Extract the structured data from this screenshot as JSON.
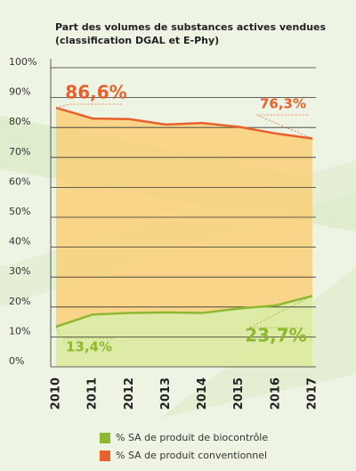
{
  "chart_data": {
    "type": "area-line",
    "title": [
      "Part des volumes de substances actives vendues",
      "(classification DGAL et E-Phy)"
    ],
    "categories": [
      "2010",
      "2011",
      "2012",
      "2013",
      "2014",
      "2015",
      "2016",
      "2017"
    ],
    "series": [
      {
        "name": "% SA de produit conventionnel",
        "color": "#e8612c",
        "fill": "#f8d27e",
        "values": [
          86.6,
          83,
          82.8,
          81,
          81.5,
          80.2,
          78,
          76.3
        ],
        "value_labels": [
          "86,6%",
          null,
          null,
          null,
          null,
          null,
          null,
          "76,3%"
        ]
      },
      {
        "name": "% SA de produit de biocontrôle",
        "color": "#8db82f",
        "fill": "#dcea9e",
        "values": [
          13.4,
          17.5,
          18,
          18.2,
          18,
          19.5,
          20.5,
          23.7
        ],
        "value_labels": [
          "13,4%",
          null,
          null,
          null,
          null,
          null,
          null,
          "23,7%"
        ]
      }
    ],
    "legend_order": [
      1,
      0
    ],
    "ylim": [
      0,
      100
    ],
    "yticks": [
      {
        "value": 0,
        "label": "0%"
      },
      {
        "value": 10,
        "label": "10%"
      },
      {
        "value": 20,
        "label": "20%"
      },
      {
        "value": 30,
        "label": "30%"
      },
      {
        "value": 40,
        "label": "40%"
      },
      {
        "value": 50,
        "label": "50%"
      },
      {
        "value": 60,
        "label": "60%"
      },
      {
        "value": 70,
        "label": "70%"
      },
      {
        "value": 80,
        "label": "80%"
      },
      {
        "value": 90,
        "label": "90%"
      },
      {
        "value": 100,
        "label": "100%"
      }
    ],
    "grid": true
  }
}
